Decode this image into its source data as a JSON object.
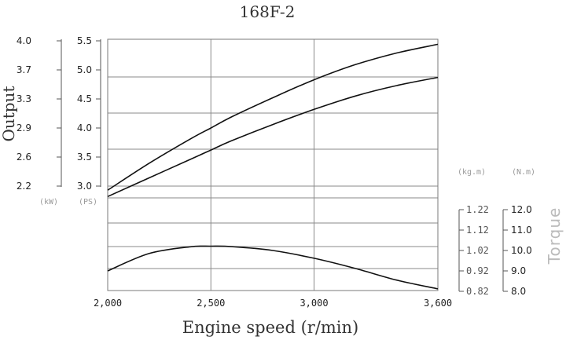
{
  "chart_data": {
    "type": "line",
    "title": "168F-2",
    "xlabel": "Engine speed (r/min)",
    "x_ticks": [
      "2,000",
      "2,500",
      "3,000",
      "3,600"
    ],
    "x_values": [
      2000,
      2500,
      3000,
      3600
    ],
    "xlim": [
      2000,
      3600
    ],
    "output_axis_label": "Output",
    "torque_axis_label": "Torque",
    "units": {
      "kw": "(kW)",
      "ps": "(PS)",
      "kgm": "(kg.m)",
      "nm": "(N.m)"
    },
    "kw_ticks": [
      "4.0",
      "3.7",
      "3.3",
      "2.9",
      "2.6",
      "2.2"
    ],
    "ps_ticks": [
      "5.5",
      "5.0",
      "4.5",
      "4.0",
      "3.5",
      "3.0"
    ],
    "kgm_ticks": [
      "1.22",
      "1.12",
      "1.02",
      "0.92",
      "0.82"
    ],
    "nm_ticks": [
      "12.0",
      "11.0",
      "10.0",
      "9.0",
      "8.0"
    ],
    "ps_range": [
      3.0,
      5.5
    ],
    "nm_range": [
      8.0,
      12.0
    ],
    "grid": true,
    "series": [
      {
        "x": [
          2000,
          2200,
          2400,
          2500,
          2600,
          2800,
          3000,
          3200,
          3400,
          3600
        ],
        "values": [
          2.93,
          3.39,
          3.81,
          4.0,
          4.19,
          4.52,
          4.83,
          5.09,
          5.29,
          5.44
        ]
      },
      {
        "x": [
          2000,
          2200,
          2400,
          2500,
          2600,
          2800,
          3000,
          3200,
          3400,
          3600
        ],
        "values": [
          2.82,
          3.14,
          3.46,
          3.62,
          3.78,
          4.06,
          4.32,
          4.55,
          4.73,
          4.87
        ]
      },
      {
        "x": [
          2000,
          2200,
          2400,
          2500,
          2600,
          2800,
          3000,
          3200,
          3400,
          3600
        ],
        "values": [
          9.0,
          9.85,
          10.18,
          10.21,
          10.19,
          10.0,
          9.62,
          9.12,
          8.55,
          8.12
        ]
      }
    ]
  }
}
